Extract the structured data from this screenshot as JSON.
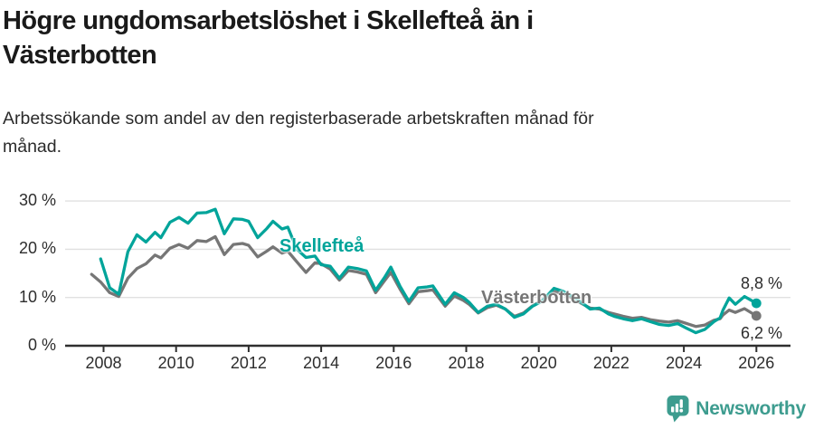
{
  "chart_data": {
    "type": "line",
    "title": "Högre ungdomsarbetslöshet i Skellefteå än i\nVästerbotten",
    "subtitle": "Arbetssökande som andel av den registerbaserade arbetskraften månad för\nmånad.",
    "x_ticks": [
      2008,
      2010,
      2012,
      2014,
      2016,
      2018,
      2020,
      2022,
      2024,
      2026
    ],
    "y_ticks": [
      {
        "value": 0,
        "label": "0 %"
      },
      {
        "value": 10,
        "label": "10 %"
      },
      {
        "value": 20,
        "label": "20 %"
      },
      {
        "value": 30,
        "label": "30 %"
      }
    ],
    "xlim": [
      2006.94,
      2026.94
    ],
    "ylim": [
      0,
      30
    ],
    "grid": "horizontal",
    "grid_color": "#e0e0e0",
    "axis_color": "#2f2f2f",
    "series": [
      {
        "name": "Skellefteå",
        "color": "#00a49a",
        "end_label": "8,8 %",
        "end_value": 8.8,
        "x": [
          2007.92,
          2008.17,
          2008.42,
          2008.67,
          2008.92,
          2009.17,
          2009.42,
          2009.58,
          2009.83,
          2010.08,
          2010.33,
          2010.58,
          2010.83,
          2011.08,
          2011.33,
          2011.58,
          2011.83,
          2012.0,
          2012.25,
          2012.5,
          2012.67,
          2012.92,
          2013.08,
          2013.33,
          2013.58,
          2013.83,
          2014.0,
          2014.25,
          2014.5,
          2014.75,
          2015.0,
          2015.25,
          2015.5,
          2015.75,
          2015.92,
          2016.17,
          2016.42,
          2016.67,
          2016.92,
          2017.08,
          2017.42,
          2017.67,
          2017.92,
          2018.08,
          2018.33,
          2018.58,
          2018.83,
          2019.08,
          2019.33,
          2019.58,
          2019.83,
          2020.08,
          2020.42,
          2020.67,
          2020.92,
          2021.17,
          2021.42,
          2021.67,
          2021.92,
          2022.08,
          2022.33,
          2022.58,
          2022.83,
          2023.08,
          2023.33,
          2023.58,
          2023.83,
          2024.08,
          2024.33,
          2024.58,
          2024.83,
          2025.0,
          2025.08,
          2025.25,
          2025.42,
          2025.67,
          2026.0
        ],
        "values": [
          18.0,
          12.0,
          10.7,
          19.5,
          23.0,
          21.5,
          23.5,
          22.4,
          25.6,
          26.6,
          25.4,
          27.5,
          27.6,
          28.3,
          23.2,
          26.3,
          26.2,
          25.8,
          22.4,
          24.3,
          25.8,
          24.2,
          24.6,
          20.0,
          18.3,
          18.6,
          16.8,
          16.5,
          14.0,
          16.3,
          16.0,
          15.5,
          11.5,
          14.2,
          16.3,
          12.4,
          9.2,
          12.0,
          12.2,
          12.4,
          8.6,
          11.0,
          10.0,
          9.0,
          6.9,
          8.2,
          8.6,
          7.6,
          5.9,
          6.6,
          8.2,
          9.2,
          11.9,
          11.3,
          10.2,
          9.0,
          7.6,
          7.8,
          6.6,
          6.1,
          5.6,
          5.2,
          5.6,
          5.0,
          4.4,
          4.2,
          4.6,
          3.6,
          2.7,
          3.4,
          5.0,
          5.8,
          7.4,
          9.9,
          8.6,
          10.2,
          8.8
        ]
      },
      {
        "name": "Västerbotten",
        "color": "#767676",
        "end_label": "6,2 %",
        "end_value": 6.2,
        "x": [
          2007.67,
          2007.92,
          2008.17,
          2008.42,
          2008.67,
          2008.92,
          2009.17,
          2009.42,
          2009.58,
          2009.83,
          2010.08,
          2010.33,
          2010.58,
          2010.83,
          2011.08,
          2011.33,
          2011.58,
          2011.83,
          2012.0,
          2012.25,
          2012.5,
          2012.67,
          2012.92,
          2013.08,
          2013.33,
          2013.58,
          2013.83,
          2014.0,
          2014.25,
          2014.5,
          2014.75,
          2015.0,
          2015.25,
          2015.5,
          2015.75,
          2015.92,
          2016.17,
          2016.42,
          2016.67,
          2016.92,
          2017.08,
          2017.42,
          2017.67,
          2017.92,
          2018.08,
          2018.33,
          2018.58,
          2018.83,
          2019.08,
          2019.33,
          2019.58,
          2019.83,
          2020.08,
          2020.42,
          2020.67,
          2020.92,
          2021.17,
          2021.42,
          2021.67,
          2021.92,
          2022.08,
          2022.33,
          2022.58,
          2022.83,
          2023.08,
          2023.33,
          2023.58,
          2023.83,
          2024.08,
          2024.33,
          2024.58,
          2024.83,
          2025.0,
          2025.08,
          2025.25,
          2025.42,
          2025.67,
          2026.0
        ],
        "values": [
          14.8,
          13.2,
          11.0,
          10.2,
          14.0,
          16.0,
          17.0,
          18.8,
          18.2,
          20.2,
          21.0,
          20.2,
          21.8,
          21.6,
          22.6,
          18.9,
          21.0,
          21.2,
          20.8,
          18.4,
          19.6,
          20.5,
          19.2,
          19.6,
          17.4,
          15.2,
          17.2,
          17.0,
          15.9,
          13.6,
          15.6,
          15.3,
          14.8,
          11.0,
          13.5,
          15.2,
          11.8,
          8.7,
          11.2,
          11.4,
          11.6,
          8.2,
          10.3,
          9.4,
          8.6,
          6.8,
          7.9,
          8.4,
          7.6,
          6.1,
          6.8,
          8.3,
          9.3,
          11.2,
          10.8,
          9.9,
          8.8,
          7.8,
          7.6,
          6.9,
          6.6,
          6.1,
          5.7,
          5.9,
          5.4,
          5.1,
          4.9,
          5.2,
          4.6,
          4.0,
          4.3,
          5.3,
          5.6,
          6.4,
          7.4,
          6.9,
          7.7,
          6.2
        ]
      }
    ]
  },
  "footer": {
    "brand": "Newsworthy",
    "logo_color": "#3d9c8f",
    "logo_icon": "bar-chart-speech-bubble-icon"
  }
}
